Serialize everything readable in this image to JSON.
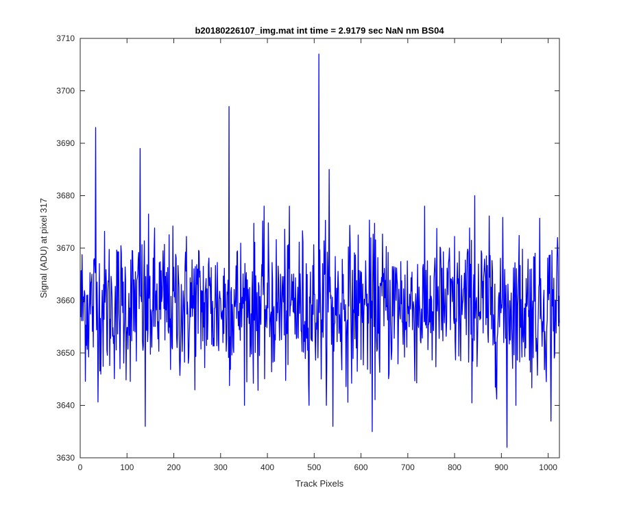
{
  "chart_data": {
    "type": "line",
    "title": "b20180226107_img.mat int time = 2.9179 sec  NaN nm BS04",
    "xlabel": "Track Pixels",
    "ylabel": "Signal (ADU) at pixel 317",
    "xlim": [
      0,
      1024
    ],
    "ylim": [
      3630,
      3710
    ],
    "xticks": [
      0,
      100,
      200,
      300,
      400,
      500,
      600,
      700,
      800,
      900,
      1000
    ],
    "yticks": [
      3630,
      3640,
      3650,
      3660,
      3670,
      3680,
      3690,
      3700,
      3710
    ],
    "grid": false,
    "series": [
      {
        "color": "#0000ff",
        "x_start": 1,
        "x_step": 1,
        "approx_mean": 3659,
        "approx_std": 7,
        "values_note_sampled": "",
        "key_points": [
          {
            "x": 33,
            "y": 3693
          },
          {
            "x": 128,
            "y": 3689
          },
          {
            "x": 139,
            "y": 3636
          },
          {
            "x": 318,
            "y": 3697
          },
          {
            "x": 510,
            "y": 3707
          },
          {
            "x": 532,
            "y": 3685
          },
          {
            "x": 540,
            "y": 3636
          },
          {
            "x": 624,
            "y": 3635
          },
          {
            "x": 843,
            "y": 3680
          },
          {
            "x": 912,
            "y": 3632
          },
          {
            "x": 1006,
            "y": 3637
          },
          {
            "x": 1020,
            "y": 3672
          }
        ]
      }
    ]
  }
}
